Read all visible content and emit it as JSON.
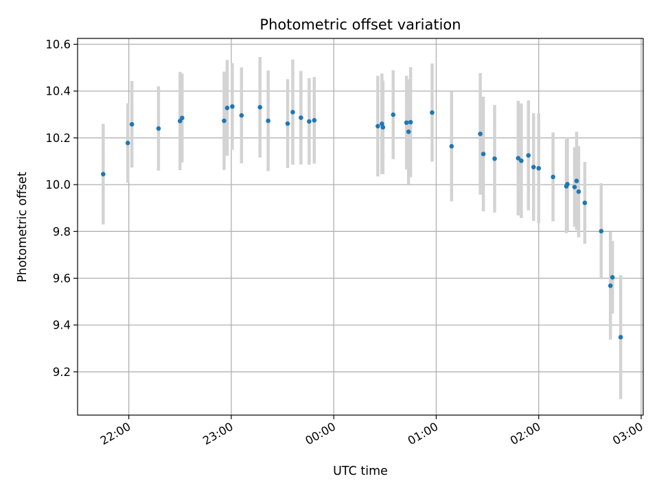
{
  "chart_data": {
    "type": "scatter",
    "title": "Photometric offset variation",
    "xlabel": "UTC time",
    "ylabel": "Photometric offset",
    "x_unit": "hours relative to 00:00 UTC (negative = previous day)",
    "xlim": [
      -2.5,
      3.02
    ],
    "ylim": [
      9.015,
      10.625
    ],
    "x_ticks": [
      {
        "value": -2,
        "label": "22:00"
      },
      {
        "value": -1,
        "label": "23:00"
      },
      {
        "value": 0,
        "label": "00:00"
      },
      {
        "value": 1,
        "label": "01:00"
      },
      {
        "value": 2,
        "label": "02:00"
      },
      {
        "value": 3,
        "label": "03:00"
      }
    ],
    "y_ticks": [
      {
        "value": 9.2,
        "label": "9.2"
      },
      {
        "value": 9.4,
        "label": "9.4"
      },
      {
        "value": 9.6,
        "label": "9.6"
      },
      {
        "value": 9.8,
        "label": "9.8"
      },
      {
        "value": 10.0,
        "label": "10.0"
      },
      {
        "value": 10.2,
        "label": "10.2"
      },
      {
        "value": 10.4,
        "label": "10.4"
      },
      {
        "value": 10.6,
        "label": "10.6"
      }
    ],
    "grid": true,
    "colors": {
      "point": "#1f77b4",
      "errorbar": "#d3d3d3",
      "grid": "#b0b0b0"
    },
    "points": [
      {
        "x": -2.25,
        "y": 10.045,
        "err": 0.215
      },
      {
        "x": -2.01,
        "y": 10.178,
        "err": 0.17
      },
      {
        "x": -1.97,
        "y": 10.258,
        "err": 0.185
      },
      {
        "x": -1.71,
        "y": 10.24,
        "err": 0.18
      },
      {
        "x": -1.5,
        "y": 10.272,
        "err": 0.21
      },
      {
        "x": -1.48,
        "y": 10.285,
        "err": 0.19
      },
      {
        "x": -1.07,
        "y": 10.273,
        "err": 0.21
      },
      {
        "x": -1.04,
        "y": 10.328,
        "err": 0.205
      },
      {
        "x": -0.99,
        "y": 10.334,
        "err": 0.185
      },
      {
        "x": -0.9,
        "y": 10.296,
        "err": 0.205
      },
      {
        "x": -0.72,
        "y": 10.331,
        "err": 0.215
      },
      {
        "x": -0.64,
        "y": 10.273,
        "err": 0.215
      },
      {
        "x": -0.45,
        "y": 10.261,
        "err": 0.19
      },
      {
        "x": -0.4,
        "y": 10.31,
        "err": 0.225
      },
      {
        "x": -0.32,
        "y": 10.286,
        "err": 0.2
      },
      {
        "x": -0.24,
        "y": 10.27,
        "err": 0.185
      },
      {
        "x": -0.19,
        "y": 10.275,
        "err": 0.185
      },
      {
        "x": 0.43,
        "y": 10.25,
        "err": 0.215
      },
      {
        "x": 0.47,
        "y": 10.26,
        "err": 0.215
      },
      {
        "x": 0.48,
        "y": 10.245,
        "err": 0.2
      },
      {
        "x": 0.58,
        "y": 10.299,
        "err": 0.19
      },
      {
        "x": 0.71,
        "y": 10.265,
        "err": 0.2
      },
      {
        "x": 0.73,
        "y": 10.226,
        "err": 0.225
      },
      {
        "x": 0.75,
        "y": 10.267,
        "err": 0.235
      },
      {
        "x": 0.96,
        "y": 10.308,
        "err": 0.21
      },
      {
        "x": 1.15,
        "y": 10.164,
        "err": 0.235
      },
      {
        "x": 1.43,
        "y": 10.217,
        "err": 0.26
      },
      {
        "x": 1.46,
        "y": 10.131,
        "err": 0.245
      },
      {
        "x": 1.57,
        "y": 10.111,
        "err": 0.23
      },
      {
        "x": 1.8,
        "y": 10.113,
        "err": 0.245
      },
      {
        "x": 1.83,
        "y": 10.102,
        "err": 0.245
      },
      {
        "x": 1.9,
        "y": 10.125,
        "err": 0.235
      },
      {
        "x": 1.95,
        "y": 10.075,
        "err": 0.23
      },
      {
        "x": 2.0,
        "y": 10.07,
        "err": 0.235
      },
      {
        "x": 2.14,
        "y": 10.033,
        "err": 0.19
      },
      {
        "x": 2.27,
        "y": 9.993,
        "err": 0.2
      },
      {
        "x": 2.28,
        "y": 10.002,
        "err": 0.2
      },
      {
        "x": 2.35,
        "y": 9.99,
        "err": 0.17
      },
      {
        "x": 2.37,
        "y": 10.016,
        "err": 0.21
      },
      {
        "x": 2.39,
        "y": 9.97,
        "err": 0.195
      },
      {
        "x": 2.45,
        "y": 9.922,
        "err": 0.175
      },
      {
        "x": 2.61,
        "y": 9.801,
        "err": 0.205
      },
      {
        "x": 2.7,
        "y": 9.568,
        "err": 0.23
      },
      {
        "x": 2.72,
        "y": 9.604,
        "err": 0.155
      },
      {
        "x": 2.8,
        "y": 9.348,
        "err": 0.265
      }
    ]
  }
}
